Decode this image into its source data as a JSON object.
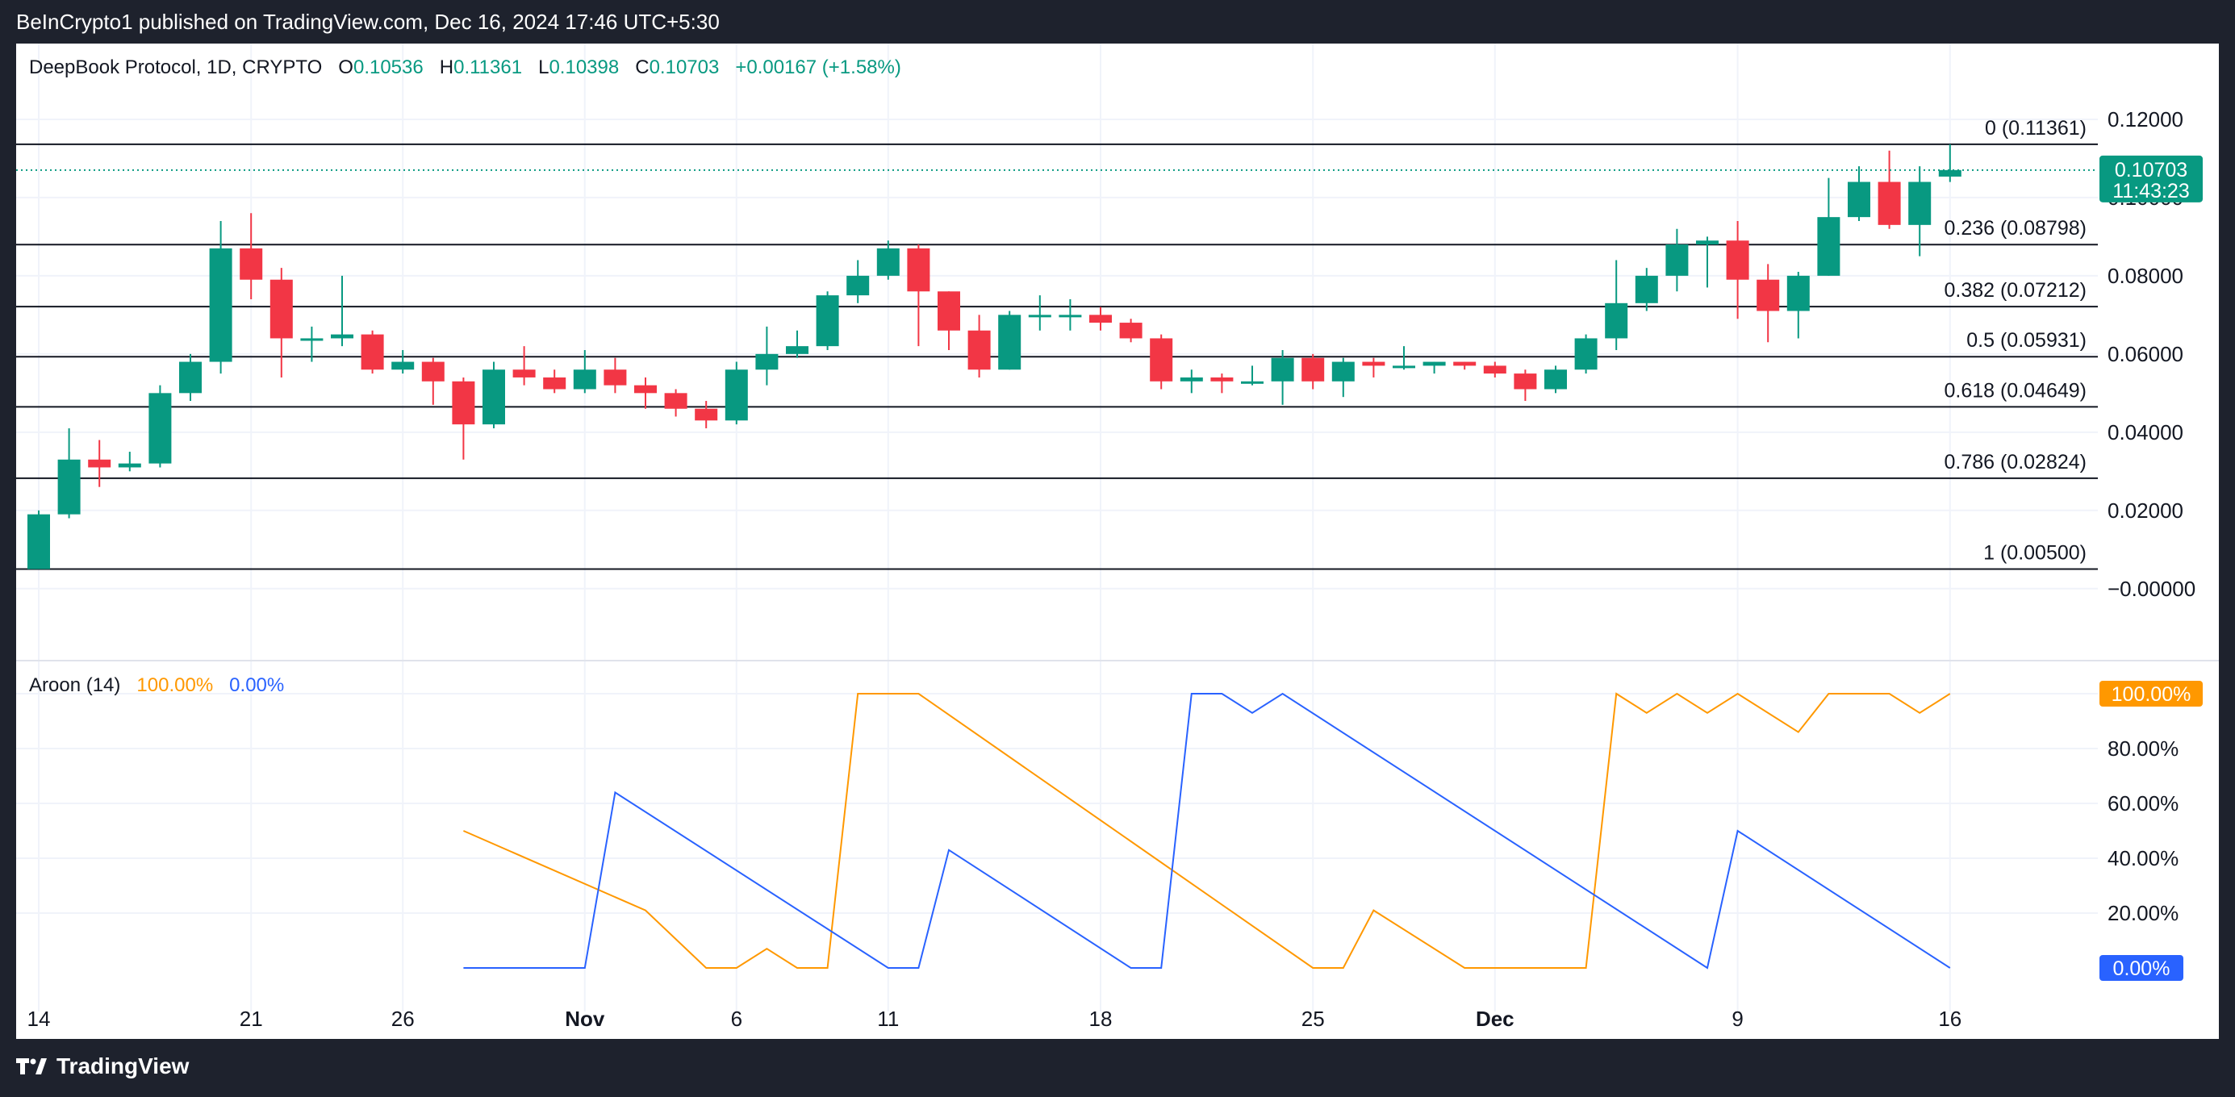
{
  "header": {
    "published_text": "BeInCrypto1 published on TradingView.com, Dec 16, 2024 17:46 UTC+5:30"
  },
  "footer": {
    "brand": "TradingView"
  },
  "legend": {
    "symbol": "DeepBook Protocol, 1D, CRYPTO",
    "open_label": "O",
    "open": "0.10536",
    "high_label": "H",
    "high": "0.11361",
    "low_label": "L",
    "low": "0.10398",
    "close_label": "C",
    "close": "0.10703",
    "change": "+0.00167 (+1.58%)"
  },
  "price_tag": {
    "price": "0.10703",
    "countdown": "11:43:23"
  },
  "aroon_legend": {
    "name": "Aroon (14)",
    "up": "100.00%",
    "down": "0.00%"
  },
  "aroon_tags": {
    "up": "100.00%",
    "down": "0.00%"
  },
  "colors": {
    "up": "#089981",
    "down": "#f23645",
    "aroon_up": "#ff9800",
    "aroon_down": "#2962ff"
  },
  "chart_data": [
    {
      "type": "candlestick",
      "title": "DeepBook Protocol, 1D, CRYPTO",
      "price_axis_ticks": [
        "0.12000",
        "0.10000",
        "0.08000",
        "0.06000",
        "0.04000",
        "0.02000",
        "−0.00000"
      ],
      "price_axis_values": [
        0.12,
        0.1,
        0.08,
        0.06,
        0.04,
        0.02,
        0.0
      ],
      "ylim": [
        -0.005,
        0.127
      ],
      "x_ticks": [
        {
          "label": "14",
          "day": 0
        },
        {
          "label": "21",
          "day": 7
        },
        {
          "label": "26",
          "day": 12
        },
        {
          "label": "Nov",
          "day": 18
        },
        {
          "label": "6",
          "day": 23
        },
        {
          "label": "11",
          "day": 28
        },
        {
          "label": "18",
          "day": 35
        },
        {
          "label": "25",
          "day": 42
        },
        {
          "label": "Dec",
          "day": 48
        },
        {
          "label": "9",
          "day": 56
        },
        {
          "label": "16",
          "day": 63
        }
      ],
      "candles": [
        [
          0.005,
          0.02,
          0.005,
          0.019
        ],
        [
          0.019,
          0.041,
          0.018,
          0.033
        ],
        [
          0.033,
          0.038,
          0.026,
          0.031
        ],
        [
          0.031,
          0.035,
          0.03,
          0.032
        ],
        [
          0.032,
          0.052,
          0.031,
          0.05
        ],
        [
          0.05,
          0.06,
          0.048,
          0.058
        ],
        [
          0.058,
          0.094,
          0.055,
          0.087
        ],
        [
          0.087,
          0.096,
          0.074,
          0.079
        ],
        [
          0.079,
          0.082,
          0.054,
          0.064
        ],
        [
          0.064,
          0.067,
          0.058,
          0.064
        ],
        [
          0.064,
          0.08,
          0.062,
          0.065
        ],
        [
          0.065,
          0.066,
          0.055,
          0.056
        ],
        [
          0.056,
          0.061,
          0.055,
          0.058
        ],
        [
          0.058,
          0.059,
          0.047,
          0.053
        ],
        [
          0.053,
          0.054,
          0.033,
          0.042
        ],
        [
          0.042,
          0.058,
          0.041,
          0.056
        ],
        [
          0.056,
          0.062,
          0.052,
          0.054
        ],
        [
          0.054,
          0.056,
          0.05,
          0.051
        ],
        [
          0.051,
          0.061,
          0.05,
          0.056
        ],
        [
          0.056,
          0.059,
          0.05,
          0.052
        ],
        [
          0.052,
          0.054,
          0.046,
          0.05
        ],
        [
          0.05,
          0.051,
          0.044,
          0.046
        ],
        [
          0.046,
          0.048,
          0.041,
          0.043
        ],
        [
          0.043,
          0.058,
          0.042,
          0.056
        ],
        [
          0.056,
          0.067,
          0.052,
          0.06
        ],
        [
          0.06,
          0.066,
          0.059,
          0.062
        ],
        [
          0.062,
          0.076,
          0.061,
          0.075
        ],
        [
          0.075,
          0.084,
          0.073,
          0.08
        ],
        [
          0.08,
          0.089,
          0.079,
          0.087
        ],
        [
          0.087,
          0.088,
          0.062,
          0.076
        ],
        [
          0.076,
          0.076,
          0.061,
          0.066
        ],
        [
          0.066,
          0.07,
          0.054,
          0.056
        ],
        [
          0.056,
          0.071,
          0.056,
          0.07
        ],
        [
          0.07,
          0.075,
          0.066,
          0.07
        ],
        [
          0.07,
          0.074,
          0.066,
          0.07
        ],
        [
          0.07,
          0.072,
          0.066,
          0.068
        ],
        [
          0.068,
          0.069,
          0.063,
          0.064
        ],
        [
          0.064,
          0.065,
          0.051,
          0.053
        ],
        [
          0.053,
          0.056,
          0.05,
          0.054
        ],
        [
          0.054,
          0.055,
          0.05,
          0.053
        ],
        [
          0.053,
          0.057,
          0.052,
          0.053
        ],
        [
          0.053,
          0.061,
          0.047,
          0.059
        ],
        [
          0.059,
          0.06,
          0.051,
          0.053
        ],
        [
          0.053,
          0.059,
          0.049,
          0.058
        ],
        [
          0.058,
          0.059,
          0.054,
          0.057
        ],
        [
          0.057,
          0.062,
          0.056,
          0.057
        ],
        [
          0.057,
          0.058,
          0.055,
          0.058
        ],
        [
          0.058,
          0.058,
          0.056,
          0.057
        ],
        [
          0.057,
          0.058,
          0.054,
          0.055
        ],
        [
          0.055,
          0.056,
          0.048,
          0.051
        ],
        [
          0.051,
          0.057,
          0.05,
          0.056
        ],
        [
          0.056,
          0.065,
          0.055,
          0.064
        ],
        [
          0.064,
          0.084,
          0.061,
          0.073
        ],
        [
          0.073,
          0.082,
          0.071,
          0.08
        ],
        [
          0.08,
          0.092,
          0.076,
          0.088
        ],
        [
          0.088,
          0.09,
          0.077,
          0.089
        ],
        [
          0.089,
          0.094,
          0.069,
          0.079
        ],
        [
          0.079,
          0.083,
          0.063,
          0.071
        ],
        [
          0.071,
          0.081,
          0.064,
          0.08
        ],
        [
          0.08,
          0.105,
          0.08,
          0.095
        ],
        [
          0.095,
          0.108,
          0.094,
          0.104
        ],
        [
          0.104,
          0.112,
          0.092,
          0.093
        ],
        [
          0.093,
          0.108,
          0.085,
          0.104
        ],
        [
          0.10536,
          0.11361,
          0.10398,
          0.10703
        ]
      ],
      "fib_levels": [
        {
          "label": "0 (0.11361)",
          "value": 0.11361
        },
        {
          "label": "0.236 (0.08798)",
          "value": 0.08798
        },
        {
          "label": "0.382 (0.07212)",
          "value": 0.07212
        },
        {
          "label": "0.5 (0.05931)",
          "value": 0.05931
        },
        {
          "label": "0.618 (0.04649)",
          "value": 0.04649
        },
        {
          "label": "0.786 (0.02824)",
          "value": 0.02824
        },
        {
          "label": "1 (0.00500)",
          "value": 0.005
        }
      ],
      "current_price": 0.10703
    },
    {
      "type": "line",
      "title": "Aroon (14)",
      "y_ticks": [
        "100.00%",
        "80.00%",
        "60.00%",
        "40.00%",
        "20.00%"
      ],
      "y_tick_values": [
        100,
        80,
        60,
        40,
        20
      ],
      "ylim": [
        0,
        100
      ],
      "series": [
        {
          "name": "up",
          "points": [
            [
              14,
              50
            ],
            [
              20,
              21
            ],
            [
              22,
              0
            ],
            [
              23,
              0
            ],
            [
              24,
              7
            ],
            [
              25,
              0
            ],
            [
              26,
              0
            ],
            [
              27,
              100
            ],
            [
              28,
              100
            ],
            [
              29,
              100
            ],
            [
              42,
              0
            ],
            [
              43,
              0
            ],
            [
              44,
              21
            ],
            [
              47,
              0
            ],
            [
              51,
              0
            ],
            [
              52,
              100
            ],
            [
              53,
              93
            ],
            [
              54,
              100
            ],
            [
              55,
              93
            ],
            [
              56,
              100
            ],
            [
              58,
              86
            ],
            [
              59,
              100
            ],
            [
              61,
              100
            ],
            [
              62,
              93
            ],
            [
              63,
              100
            ]
          ]
        },
        {
          "name": "down",
          "points": [
            [
              14,
              0
            ],
            [
              18,
              0
            ],
            [
              19,
              64
            ],
            [
              28,
              0
            ],
            [
              29,
              0
            ],
            [
              30,
              43
            ],
            [
              36,
              0
            ],
            [
              37,
              0
            ],
            [
              38,
              100
            ],
            [
              39,
              100
            ],
            [
              40,
              93
            ],
            [
              41,
              100
            ],
            [
              55,
              0
            ],
            [
              56,
              50
            ],
            [
              63,
              0
            ]
          ]
        }
      ]
    }
  ]
}
